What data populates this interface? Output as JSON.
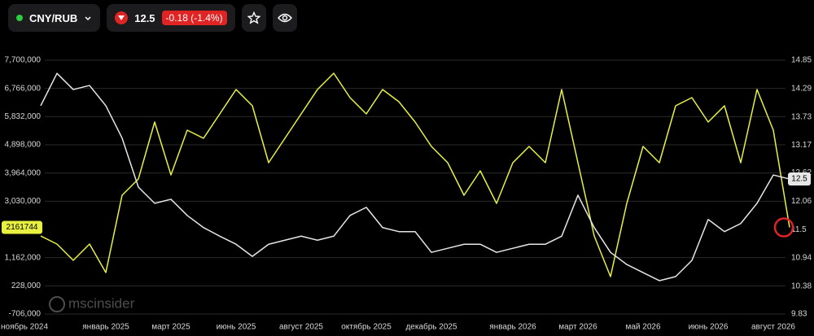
{
  "header": {
    "symbol": "CNY/RUB",
    "price": "12.5",
    "change": "-0.18 (-1.4%)"
  },
  "watermark": "mscinsider",
  "chart_data": {
    "type": "line",
    "categories": [
      "ноябрь 2024",
      null,
      null,
      null,
      null,
      "январь 2025",
      null,
      null,
      null,
      "март 2025",
      null,
      null,
      null,
      "июнь 2025",
      null,
      null,
      null,
      "август 2025",
      null,
      null,
      null,
      "октябрь 2025",
      null,
      null,
      null,
      "декабрь 2025",
      null,
      null,
      null,
      null,
      "январь 2026",
      null,
      null,
      null,
      "март 2026",
      null,
      null,
      null,
      "май 2026",
      null,
      null,
      null,
      "июнь 2026",
      null,
      null,
      null,
      "август 2026",
      null
    ],
    "series": [
      {
        "color": "#e8f040",
        "values": [
          null,
          1880000,
          1611000,
          1072000,
          1611000,
          668000,
          3228000,
          3767000,
          5652000,
          3901000,
          5383000,
          5114000,
          5922000,
          6730000,
          6191000,
          4305000,
          5114000,
          5922000,
          6730000,
          7269000,
          6461000,
          5922000,
          6730000,
          6326000,
          5652000,
          4844000,
          4305000,
          3228000,
          4036000,
          2958000,
          4305000,
          4844000,
          4305000,
          6730000,
          4305000,
          1880000,
          533000,
          2958000,
          4844000,
          4305000,
          6191000,
          6461000,
          5652000,
          6191000,
          4305000,
          6730000,
          5383000,
          2161744
        ]
      },
      {
        "color": "#e6e6e6",
        "axis": "y2",
        "values": [
          null,
          13.95,
          14.59,
          14.27,
          14.35,
          13.95,
          13.31,
          12.34,
          12.02,
          12.1,
          11.78,
          11.54,
          11.37,
          11.21,
          10.97,
          11.21,
          11.29,
          11.37,
          11.29,
          11.37,
          11.78,
          11.94,
          11.54,
          11.46,
          11.46,
          11.05,
          11.13,
          11.21,
          11.21,
          11.05,
          11.13,
          11.21,
          11.21,
          11.37,
          12.18,
          11.54,
          11.05,
          10.81,
          10.65,
          10.49,
          10.57,
          10.89,
          11.7,
          11.46,
          11.62,
          12.02,
          12.58,
          12.5
        ]
      }
    ],
    "ylim": [
      -706000,
      7700000
    ],
    "yticks": [
      {
        "value": 7700000,
        "label": "7,700,000"
      },
      {
        "value": 6766000,
        "label": "6,766,000"
      },
      {
        "value": 5832000,
        "label": "5,832,000"
      },
      {
        "value": 4898000,
        "label": "4,898,000"
      },
      {
        "value": 3964000,
        "label": "3,964,000"
      },
      {
        "value": 3030000,
        "label": "3,030,000"
      },
      {
        "value": 1162000,
        "label": "1,162,000"
      },
      {
        "value": 228000,
        "label": "228,000"
      },
      {
        "value": -706000,
        "label": "-706,000"
      }
    ],
    "y2lim": [
      9.83,
      14.85
    ],
    "y2ticks": [
      14.85,
      14.29,
      13.73,
      13.17,
      12.62,
      12.06,
      11.5,
      10.94,
      10.38,
      9.83
    ],
    "grid": true
  }
}
